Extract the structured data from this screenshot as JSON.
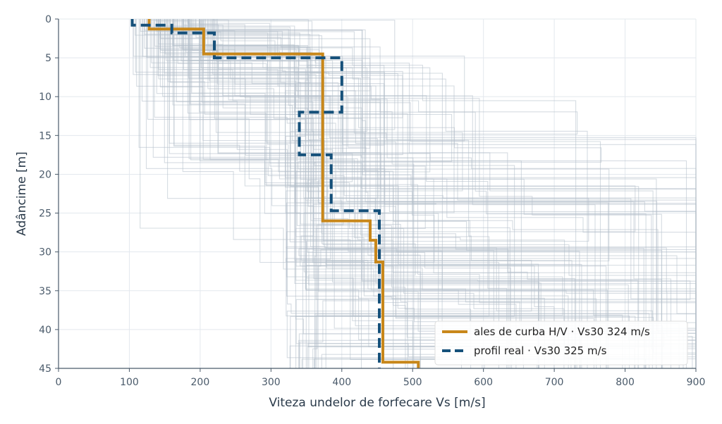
{
  "chart_data": {
    "type": "line",
    "title": "",
    "xlabel": "Viteza undelor de forfecare  Vs  [m/s]",
    "ylabel": "Adâncime  [m]",
    "xlim": [
      0,
      900
    ],
    "ylim": [
      0,
      45
    ],
    "y_inverted": true,
    "x_ticks": [
      "0",
      "100",
      "200",
      "300",
      "400",
      "500",
      "600",
      "700",
      "800",
      "900"
    ],
    "y_ticks": [
      "0",
      "5",
      "10",
      "15",
      "20",
      "25",
      "30",
      "35",
      "40",
      "45"
    ],
    "grid": true,
    "legend_position": "bottom-right",
    "background_ensemble": {
      "description_visible": false,
      "color": "#b4bfcb"
    },
    "series": [
      {
        "name": "ales de curba H/V  ·  Vs30 324 m/s",
        "color": "#c8871a",
        "style": "solid",
        "profile": [
          {
            "vs": 128,
            "top": 0,
            "bottom": 1.3
          },
          {
            "vs": 205,
            "top": 1.3,
            "bottom": 4.5
          },
          {
            "vs": 373,
            "top": 4.5,
            "bottom": 26.0
          },
          {
            "vs": 440,
            "top": 26.0,
            "bottom": 28.5
          },
          {
            "vs": 448,
            "top": 28.5,
            "bottom": 31.3
          },
          {
            "vs": 458,
            "top": 31.3,
            "bottom": 44.2
          },
          {
            "vs": 508,
            "top": 44.2,
            "bottom": 45
          }
        ]
      },
      {
        "name": "profil real  ·  Vs30 325 m/s",
        "color": "#15507a",
        "style": "dashed",
        "profile": [
          {
            "vs": 104,
            "top": 0,
            "bottom": 0.8
          },
          {
            "vs": 160,
            "top": 0.8,
            "bottom": 1.8
          },
          {
            "vs": 220,
            "top": 1.8,
            "bottom": 5.0
          },
          {
            "vs": 400,
            "top": 5.0,
            "bottom": 12.0
          },
          {
            "vs": 340,
            "top": 12.0,
            "bottom": 17.5
          },
          {
            "vs": 385,
            "top": 17.5,
            "bottom": 24.7
          },
          {
            "vs": 453,
            "top": 24.7,
            "bottom": 45
          }
        ]
      }
    ]
  }
}
